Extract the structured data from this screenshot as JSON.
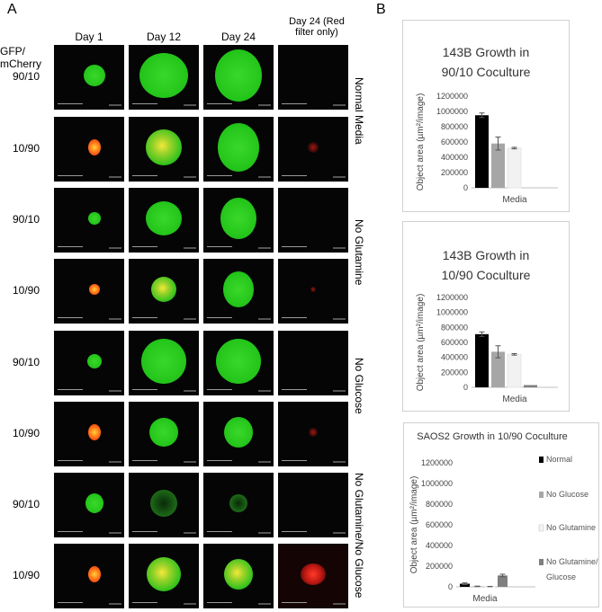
{
  "panel_a": {
    "letter": "A",
    "row_header_line1": "GFP/",
    "row_header_line2": "mCherry",
    "columns": [
      "Day 1",
      "Day 12",
      "Day 24",
      "Day 24 (Red",
      "filter only)"
    ],
    "rows": [
      "90/10",
      "10/90",
      "90/10",
      "10/90",
      "90/10",
      "10/90",
      "90/10",
      "10/90"
    ],
    "conditions": [
      "Normal Media",
      "No Glutamine",
      "No Glucose",
      "No Glutamine/No Glucose"
    ]
  },
  "panel_b": {
    "letter": "B"
  },
  "chart_data": [
    {
      "type": "bar",
      "title_lines": [
        "143B Growth in",
        "90/10 Coculture"
      ],
      "ylabel": "Object area (µm²/image)",
      "xlabel": "Media",
      "yticks": [
        "0",
        "200000",
        "400000",
        "600000",
        "800000",
        "1000000",
        "1200000"
      ],
      "ylim": [
        0,
        1200000
      ],
      "series": [
        {
          "name": "Normal",
          "value": 950000,
          "error": 30000,
          "color": "#000000"
        },
        {
          "name": "No Glucose",
          "value": 580000,
          "error": 85000,
          "color": "#a6a6a6"
        },
        {
          "name": "No Glutamine",
          "value": 520000,
          "error": 10000,
          "color": "#f2f2f2"
        }
      ]
    },
    {
      "type": "bar",
      "title_lines": [
        "143B Growth in",
        "10/90 Coculture"
      ],
      "ylabel": "Object area (µm²/image)",
      "xlabel": "Media",
      "yticks": [
        "0",
        "200000",
        "400000",
        "600000",
        "800000",
        "1000000",
        "1200000"
      ],
      "ylim": [
        0,
        1200000
      ],
      "series": [
        {
          "name": "Normal",
          "value": 710000,
          "error": 30000,
          "color": "#000000"
        },
        {
          "name": "No Glucose",
          "value": 475000,
          "error": 80000,
          "color": "#a6a6a6"
        },
        {
          "name": "No Glutamine",
          "value": 440000,
          "error": 10000,
          "color": "#f2f2f2"
        },
        {
          "name": "No Glutamine/No Glucose",
          "value": 30000,
          "error": 0,
          "color": "#7f7f7f"
        }
      ]
    },
    {
      "type": "bar",
      "title_lines": [
        "SAOS2 Growth in 10/90 Coculture"
      ],
      "ylabel": "Object area (µm²/image)",
      "xlabel": "Media",
      "yticks": [
        "0",
        "200000",
        "400000",
        "600000",
        "800000",
        "1000000",
        "1200000"
      ],
      "ylim": [
        0,
        1200000
      ],
      "legend": [
        "Normal",
        "No Glucose",
        "No Glutamine",
        "No Glutamine/No",
        "Glucose"
      ],
      "series": [
        {
          "name": "Normal",
          "value": 30000,
          "error": 8000,
          "color": "#000000"
        },
        {
          "name": "No Glucose",
          "value": 5000,
          "error": 2000,
          "color": "#a6a6a6"
        },
        {
          "name": "No Glutamine",
          "value": 3000,
          "error": 1000,
          "color": "#f2f2f2"
        },
        {
          "name": "No Glutamine/No Glucose",
          "value": 110000,
          "error": 12000,
          "color": "#7f7f7f"
        }
      ]
    }
  ]
}
